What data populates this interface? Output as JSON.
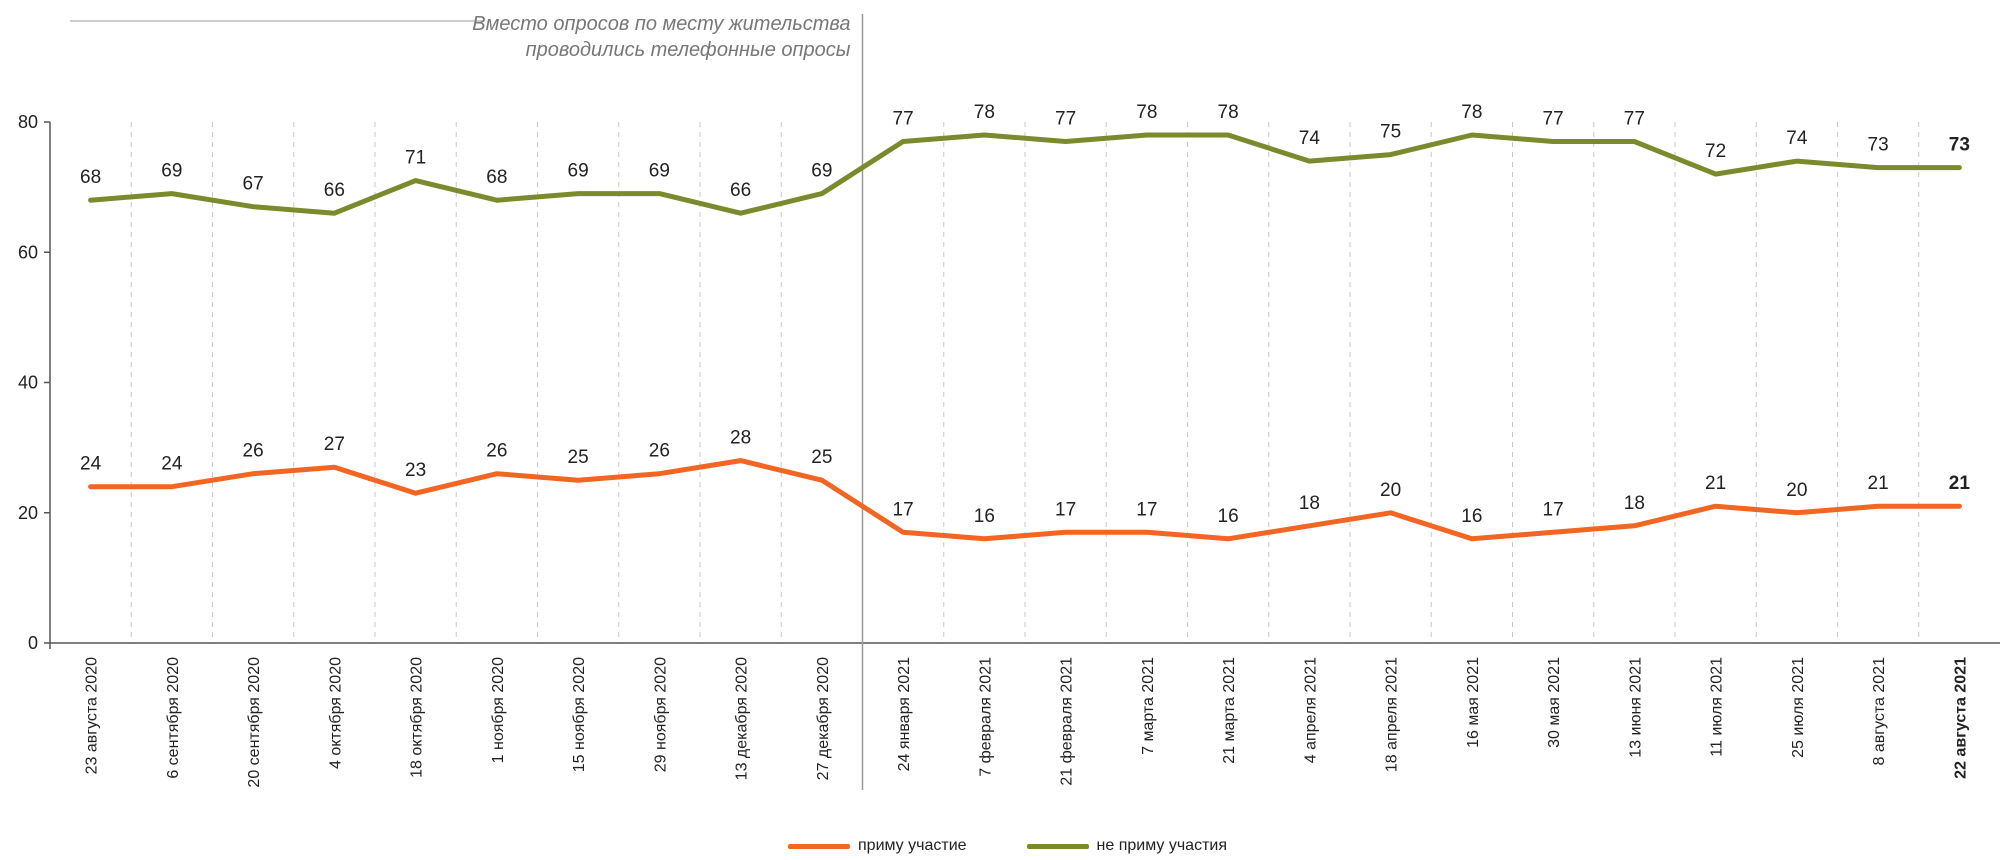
{
  "chart_data": {
    "type": "line",
    "categories": [
      "23 августа 2020",
      "6 сентября 2020",
      "20 сентября 2020",
      "4 октября 2020",
      "18 октября 2020",
      "1 ноября 2020",
      "15 ноября 2020",
      "29 ноября 2020",
      "13 декабря 2020",
      "27 декабря 2020",
      "24 января 2021",
      "7 февраля 2021",
      "21 февраля 2021",
      "7 марта 2021",
      "21 марта 2021",
      "4 апреля 2021",
      "18 апреля 2021",
      "16 мая 2021",
      "30 мая 2021",
      "13 июня 2021",
      "11 июля 2021",
      "25 июля 2021",
      "8 августа 2021",
      "22 августа 2021"
    ],
    "series": [
      {
        "name": "приму участие",
        "color": "#f26522",
        "values": [
          24,
          24,
          26,
          27,
          23,
          26,
          25,
          26,
          28,
          25,
          17,
          16,
          17,
          17,
          16,
          18,
          20,
          16,
          17,
          18,
          21,
          20,
          21,
          21
        ]
      },
      {
        "name": "не приму участия",
        "color": "#7b8a2c",
        "values": [
          68,
          69,
          67,
          66,
          71,
          68,
          69,
          69,
          66,
          69,
          77,
          78,
          77,
          78,
          78,
          74,
          75,
          78,
          77,
          77,
          72,
          74,
          73,
          73
        ]
      }
    ],
    "ylim": [
      0,
      80
    ],
    "yticks": [
      0,
      20,
      40,
      60,
      80
    ],
    "annotation": {
      "lines": [
        "Вместо опросов по месту жительства",
        "проводились телефонные опросы"
      ],
      "after_category_index": 9
    },
    "highlight_last": true,
    "grid": "vertical-dashed",
    "legend_position": "bottom"
  }
}
